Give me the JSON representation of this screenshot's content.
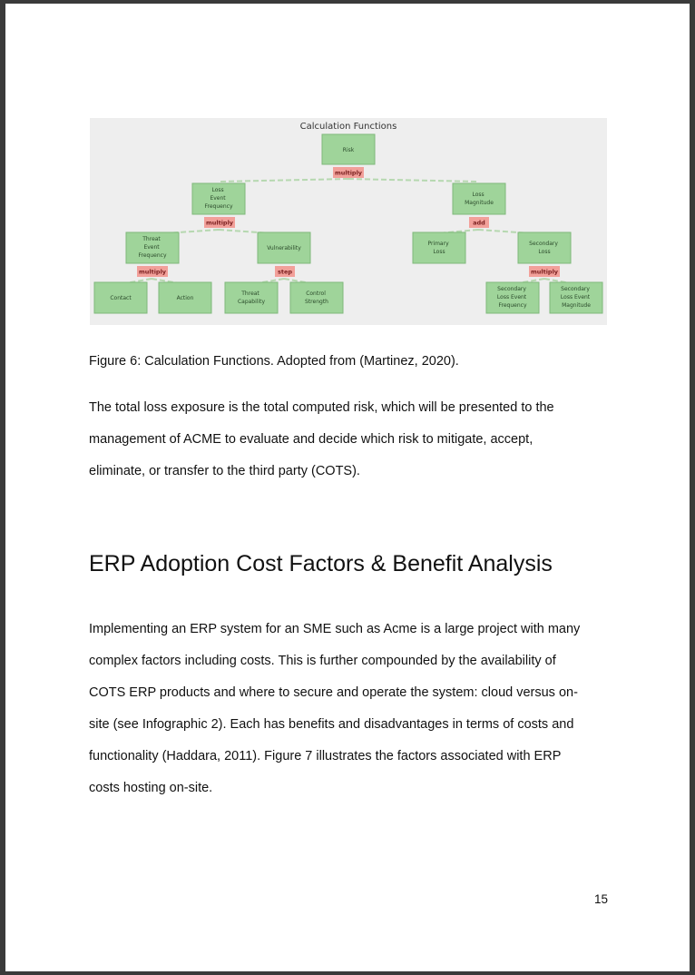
{
  "figure": {
    "title": "Calculation Functions",
    "nodes": {
      "risk": "Risk",
      "lef": [
        "Loss",
        "Event",
        "Frequency"
      ],
      "lm": [
        "Loss",
        "Magnitude"
      ],
      "tef": [
        "Threat",
        "Event",
        "Frequency"
      ],
      "vuln": "Vulnerability",
      "pl": [
        "Primary",
        "Loss"
      ],
      "sl": [
        "Secondary",
        "Loss"
      ],
      "contact": "Contact",
      "action": "Action",
      "tc": [
        "Threat",
        "Capability"
      ],
      "cs": [
        "Control",
        "Strength"
      ],
      "slef": [
        "Secondary",
        "Loss Event",
        "Frequency"
      ],
      "slem": [
        "Secondary",
        "Loss Event",
        "Magnitude"
      ]
    },
    "ops": {
      "risk": "multiply",
      "lef": "multiply",
      "lm": "add",
      "tef": "multiply",
      "vuln": "step",
      "sl": "multiply"
    },
    "colors": {
      "node_fill": "#9fd49a",
      "node_border": "#7fb87a",
      "op_fill": "#f2a09a",
      "edge": "#b6d8b0",
      "background": "#eeeeee"
    }
  },
  "caption": "Figure 6: Calculation Functions. Adopted from (Martinez, 2020).",
  "para1": [
    "The total loss exposure is the total computed risk, which will be presented to the",
    "management of ACME to evaluate and decide which risk to mitigate, accept,",
    "eliminate, or transfer to the third party (COTS)."
  ],
  "heading": "ERP Adoption Cost Factors & Benefit Analysis",
  "para2": [
    "Implementing an ERP system for an SME such as Acme is a large project with many",
    "complex factors including costs. This is further compounded by the availability of",
    "COTS ERP products and where to secure and operate the system: cloud versus on-",
    "site (see Infographic 2). Each has benefits and disadvantages in terms of costs and",
    "functionality (Haddara, 2011). Figure 7 illustrates the factors associated with ERP",
    "costs hosting on-site."
  ],
  "page_number": "15"
}
